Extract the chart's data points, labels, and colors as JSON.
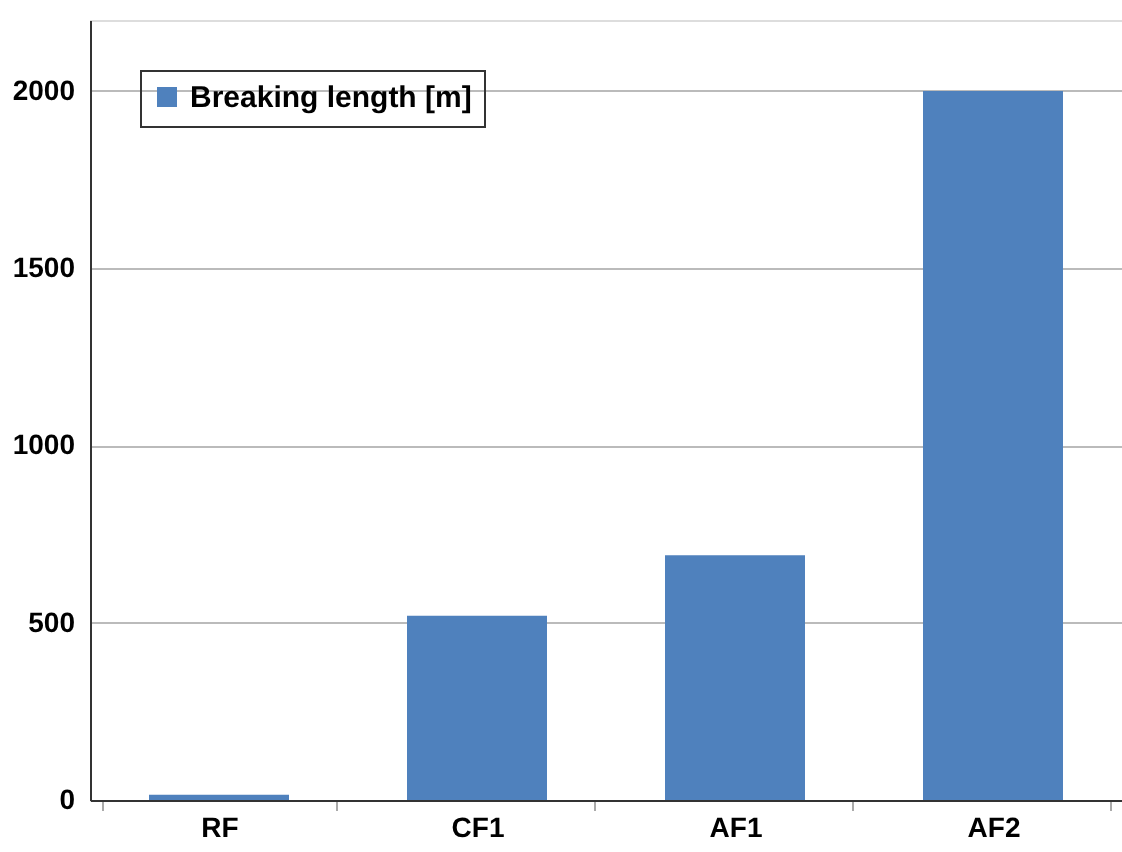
{
  "chart_data": {
    "type": "bar",
    "categories": [
      "RF",
      "CF1",
      "AF1",
      "AF2"
    ],
    "series": [
      {
        "name": "Breaking length [m]",
        "color": "#4f81bd",
        "values": [
          15,
          520,
          690,
          2000
        ]
      }
    ],
    "ylim": [
      0,
      2200
    ],
    "yticks": [
      0,
      500,
      1000,
      1500,
      2000
    ],
    "grid": "y",
    "legend": "top left"
  }
}
